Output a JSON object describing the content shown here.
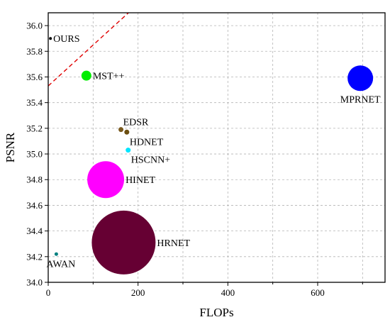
{
  "chart_data": {
    "type": "scatter",
    "title": "",
    "xlabel": "FLOPs",
    "ylabel": "PSNR",
    "xlim": [
      0,
      750
    ],
    "ylim": [
      34.0,
      36.1
    ],
    "grid": true,
    "x_major_ticks": [
      0,
      200,
      400,
      600
    ],
    "x_minor_ticks": [
      100,
      300,
      500,
      700
    ],
    "y_ticks": [
      34.0,
      34.2,
      34.4,
      34.6,
      34.8,
      35.0,
      35.2,
      35.4,
      35.6,
      35.8,
      36.0
    ],
    "x_tick_labels": [
      "0",
      "200",
      "400",
      "600"
    ],
    "y_tick_labels": [
      "34.0",
      "34.2",
      "34.4",
      "34.6",
      "34.8",
      "35.0",
      "35.2",
      "35.4",
      "35.6",
      "35.8",
      "36.0"
    ],
    "points": [
      {
        "label": "OURS",
        "x": 5,
        "y": 35.9,
        "size": 2,
        "color": "#000000",
        "label_pos": "right"
      },
      {
        "label": "MST++",
        "x": 85,
        "y": 35.61,
        "size": 7,
        "color": "#00ee00",
        "label_pos": "right"
      },
      {
        "label": "MPRNET",
        "x": 695,
        "y": 35.59,
        "size": 18,
        "color": "#0000ff",
        "label_pos": "below"
      },
      {
        "label": "EDSR",
        "x": 162,
        "y": 35.19,
        "size": 3.5,
        "color": "#7a5a1e",
        "label_pos": "above-right"
      },
      {
        "label": "HDNET",
        "x": 175,
        "y": 35.17,
        "size": 3.5,
        "color": "#6b4e10",
        "label_pos": "below-right"
      },
      {
        "label": "HSCNN+",
        "x": 178,
        "y": 35.03,
        "size": 3.5,
        "color": "#00e5ff",
        "label_pos": "below-right"
      },
      {
        "label": "HINET",
        "x": 128,
        "y": 34.8,
        "size": 26,
        "color": "#ff00ff",
        "label_pos": "right"
      },
      {
        "label": "HRNET",
        "x": 168,
        "y": 34.31,
        "size": 45,
        "color": "#660033",
        "label_pos": "right"
      },
      {
        "label": "AWAN",
        "x": 18,
        "y": 34.22,
        "size": 2.5,
        "color": "#008080",
        "label_pos": "below"
      }
    ],
    "trend_line": {
      "x": [
        0,
        185
      ],
      "y": [
        35.53,
        36.12
      ],
      "color": "#e00000",
      "style": "dashed"
    }
  }
}
